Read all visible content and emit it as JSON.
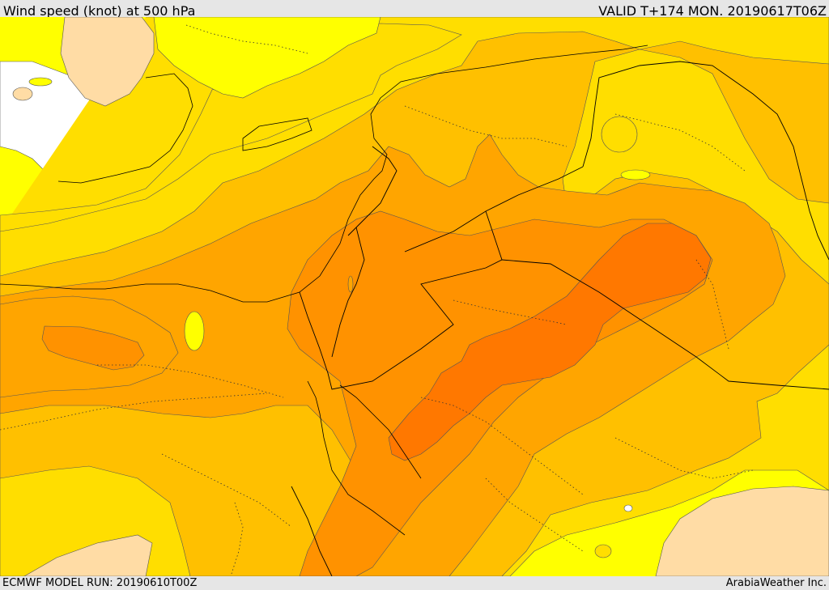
{
  "header": {
    "title": "Wind speed (knot) at 500 hPa",
    "valid_time": "VALID T+174 MON. 20190617T06Z"
  },
  "footer": {
    "model_run": "ECMWF MODEL RUN: 20190610T00Z",
    "credit": "ArabiaWeather Inc."
  },
  "colors": {
    "background_land_fill": "#ffff00",
    "band_1": "#ffde00",
    "band_2": "#ffc000",
    "band_3": "#ffa500",
    "band_4": "#ff9200",
    "band_5": "#ff7800",
    "low_wind_peach": "#ffdca5",
    "calm_white": "#ffffff",
    "outline": "#000000"
  }
}
